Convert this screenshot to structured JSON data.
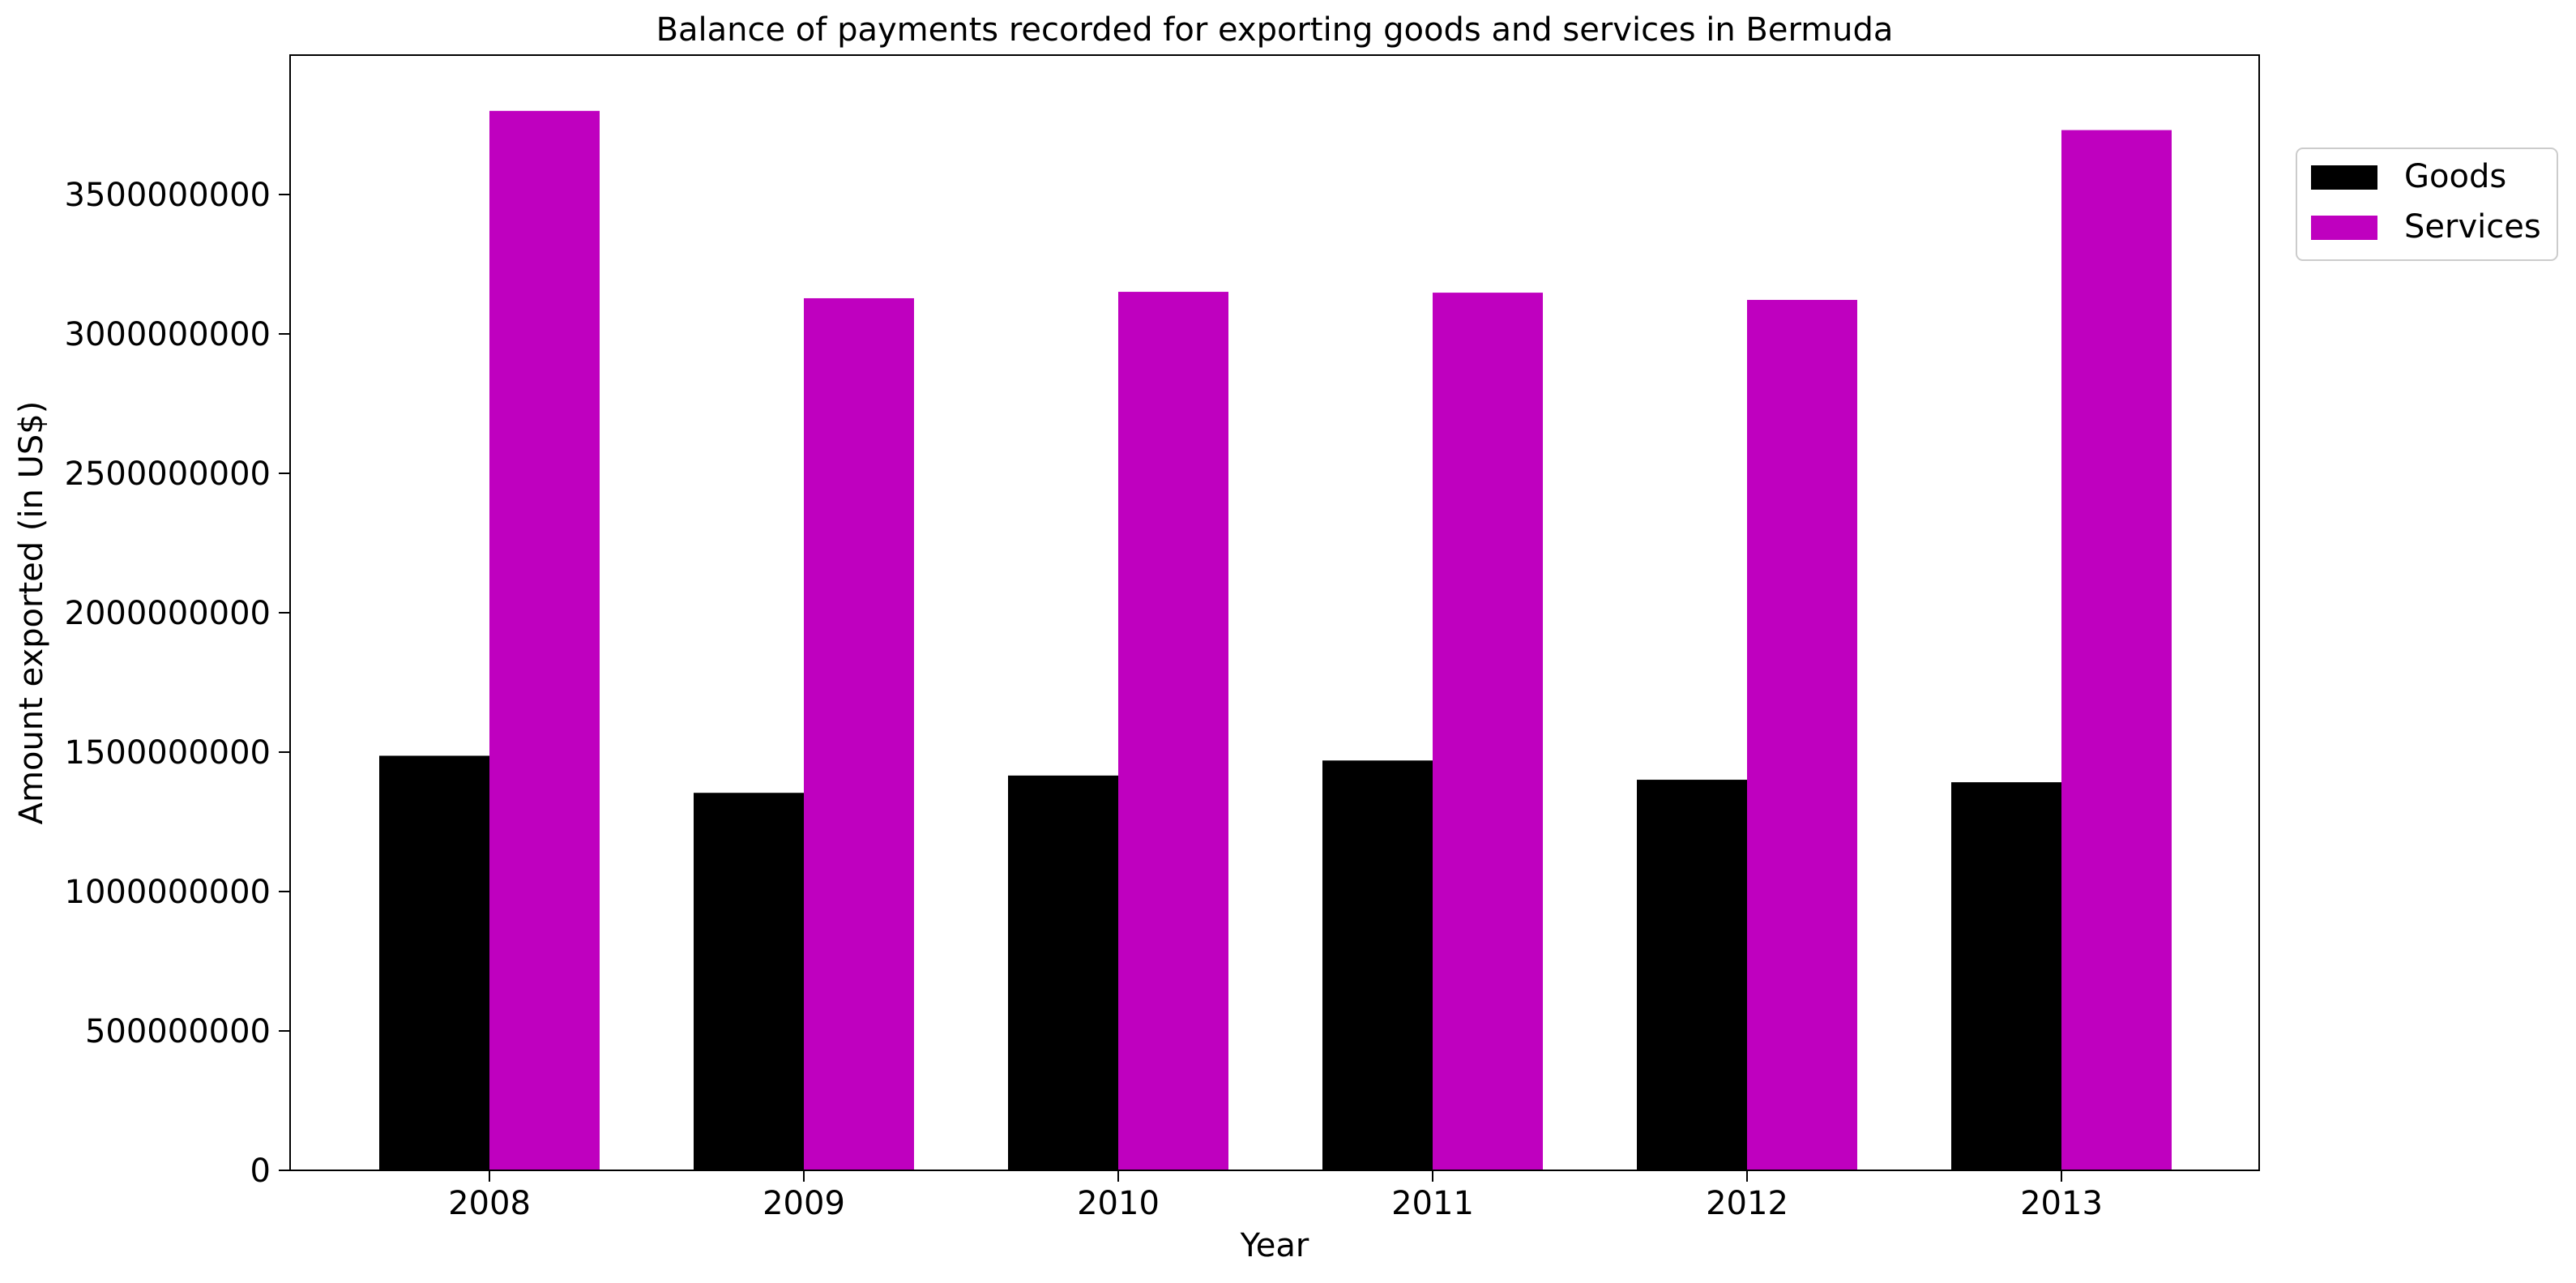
{
  "chart_data": {
    "type": "bar",
    "title": "Balance of payments recorded for exporting goods and services in Bermuda",
    "xlabel": "Year",
    "ylabel": "Amount exported (in US$)",
    "categories": [
      "2008",
      "2009",
      "2010",
      "2011",
      "2012",
      "2013"
    ],
    "series": [
      {
        "name": "Goods",
        "color": "#000000",
        "values": [
          1487000000,
          1354000000,
          1416000000,
          1470000000,
          1401000000,
          1392000000
        ]
      },
      {
        "name": "Services",
        "color": "#bf00bf",
        "values": [
          3800000000,
          3128000000,
          3151000000,
          3148000000,
          3122000000,
          3731000000
        ]
      }
    ],
    "ylim": [
      0,
      4000000000
    ],
    "yticks": [
      0,
      500000000,
      1000000000,
      1500000000,
      2000000000,
      2500000000,
      3000000000,
      3500000000
    ],
    "ytick_labels": [
      "0",
      "500000000",
      "1000000000",
      "1500000000",
      "2000000000",
      "2500000000",
      "3000000000",
      "3500000000"
    ],
    "grid": false,
    "legend_position": "top-right-outside"
  }
}
